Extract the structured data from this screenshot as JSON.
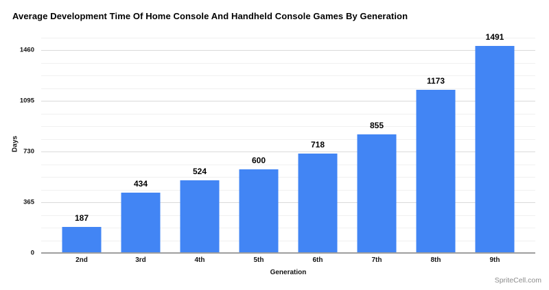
{
  "watermark": "SpriteCell.com",
  "chart_data": {
    "type": "bar",
    "title": "Average Development Time Of Home Console And Handheld Console Games By Generation",
    "xlabel": "Generation",
    "ylabel": "Days",
    "categories": [
      "2nd",
      "3rd",
      "4th",
      "5th",
      "6th",
      "7th",
      "8th",
      "9th"
    ],
    "values": [
      187,
      434,
      524,
      600,
      718,
      855,
      1173,
      1491
    ],
    "ylim": [
      0,
      1565
    ],
    "y_major_ticks": [
      0,
      365,
      730,
      1095,
      1460
    ],
    "y_minor_step": 91.25,
    "grid": true,
    "legend": "none",
    "bar_color": "#4285f4",
    "major_grid_color": "#dadada",
    "minor_grid_color": "#f0f0f0",
    "axis_line_color": "#9e9e9e"
  }
}
